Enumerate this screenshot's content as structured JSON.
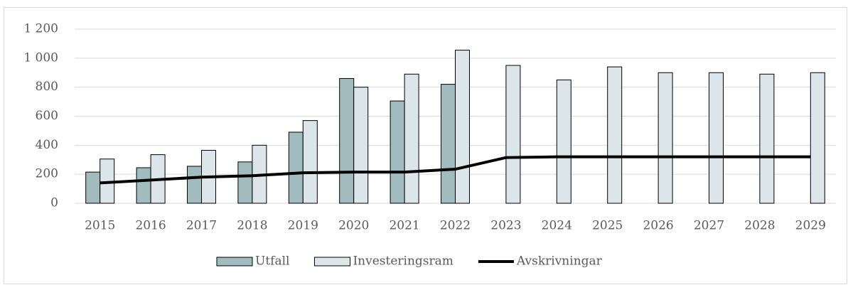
{
  "chart_data": {
    "type": "bar-line",
    "categories": [
      "2015",
      "2016",
      "2017",
      "2018",
      "2019",
      "2020",
      "2021",
      "2022",
      "2023",
      "2024",
      "2025",
      "2026",
      "2027",
      "2028",
      "2029"
    ],
    "series": [
      {
        "name": "Utfall",
        "type": "bar",
        "color": "#a2bbbf",
        "values": [
          215,
          245,
          255,
          285,
          490,
          860,
          705,
          820,
          null,
          null,
          null,
          null,
          null,
          null,
          null
        ]
      },
      {
        "name": "Investeringsram",
        "type": "bar",
        "color": "#dce6ea",
        "values": [
          305,
          335,
          365,
          400,
          570,
          800,
          890,
          1055,
          950,
          850,
          940,
          900,
          900,
          890,
          900
        ]
      },
      {
        "name": "Avskrivningar",
        "type": "line",
        "color": "#000000",
        "values": [
          140,
          160,
          180,
          190,
          210,
          215,
          215,
          235,
          315,
          320,
          320,
          320,
          320,
          320,
          320
        ]
      }
    ],
    "ylim": [
      0,
      1200
    ],
    "yticks": [
      0,
      200,
      400,
      600,
      800,
      {
        "value": 1000,
        "label": "1 000"
      },
      {
        "value": 1200,
        "label": "1 200"
      }
    ],
    "grid": true,
    "legend": "bottom"
  }
}
